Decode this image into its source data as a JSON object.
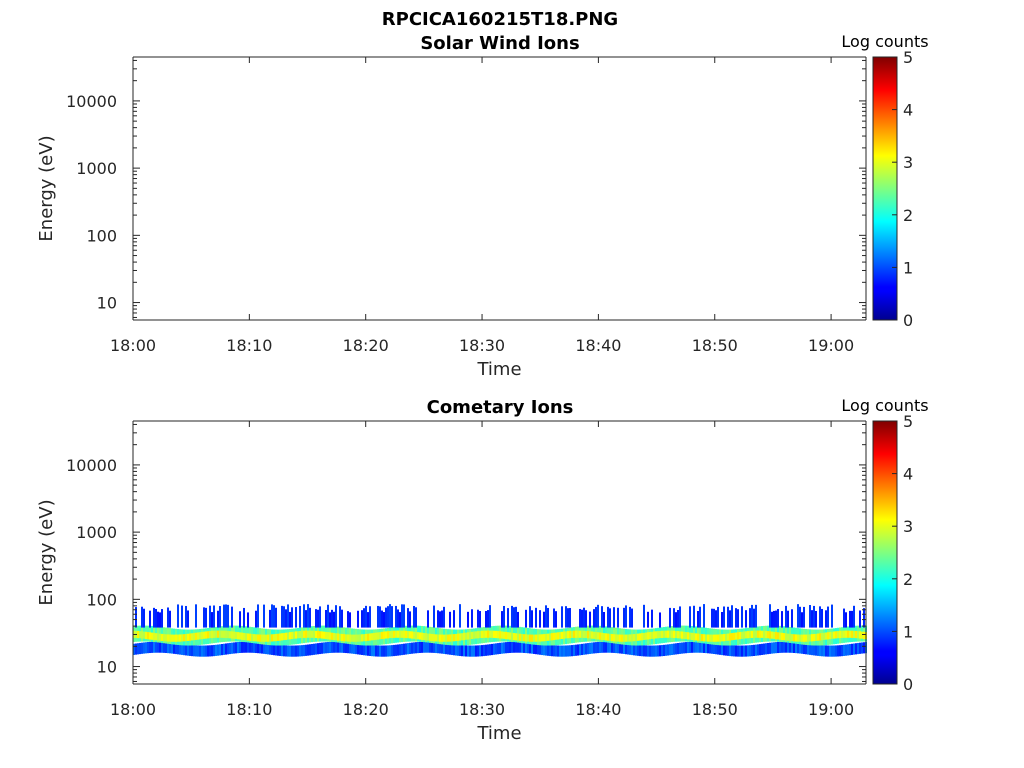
{
  "figure_title": "RPCICA160215T18.PNG",
  "chart_data": [
    {
      "type": "heatmap",
      "title": "Solar Wind Ions",
      "xlabel": "Time",
      "ylabel": "Energy (eV)",
      "x_ticks": [
        "18:00",
        "18:10",
        "18:20",
        "18:30",
        "18:40",
        "18:50",
        "19:00"
      ],
      "y_ticks": [
        "10",
        "100",
        "1000",
        "10000"
      ],
      "y_scale": "log",
      "xlim": [
        "18:00",
        "19:03"
      ],
      "ylim": [
        5.5,
        45000
      ],
      "colorbar": {
        "label": "Log counts",
        "ticks": [
          "0",
          "1",
          "2",
          "3",
          "4",
          "5"
        ],
        "range": [
          0,
          5
        ],
        "colormap": "jet"
      },
      "bands": []
    },
    {
      "type": "heatmap",
      "title": "Cometary Ions",
      "xlabel": "Time",
      "ylabel": "Energy (eV)",
      "x_ticks": [
        "18:00",
        "18:10",
        "18:20",
        "18:30",
        "18:40",
        "18:50",
        "19:00"
      ],
      "y_ticks": [
        "10",
        "100",
        "1000",
        "10000"
      ],
      "y_scale": "log",
      "xlim": [
        "18:00",
        "19:03"
      ],
      "ylim": [
        5.5,
        45000
      ],
      "colorbar": {
        "label": "Log counts",
        "ticks": [
          "0",
          "1",
          "2",
          "3",
          "4",
          "5"
        ],
        "range": [
          0,
          5
        ],
        "colormap": "jet"
      },
      "bands": [
        {
          "energy_range_eV": [
            15,
            22
          ],
          "log_counts": 1.0
        },
        {
          "energy_range_eV": [
            22,
            38
          ],
          "log_counts": 2.3
        },
        {
          "energy_range_eV": [
            25,
            32
          ],
          "log_counts": 3.0
        },
        {
          "energy_range_eV": [
            38,
            85
          ],
          "log_counts": 0.7,
          "sparse": true
        }
      ]
    }
  ]
}
